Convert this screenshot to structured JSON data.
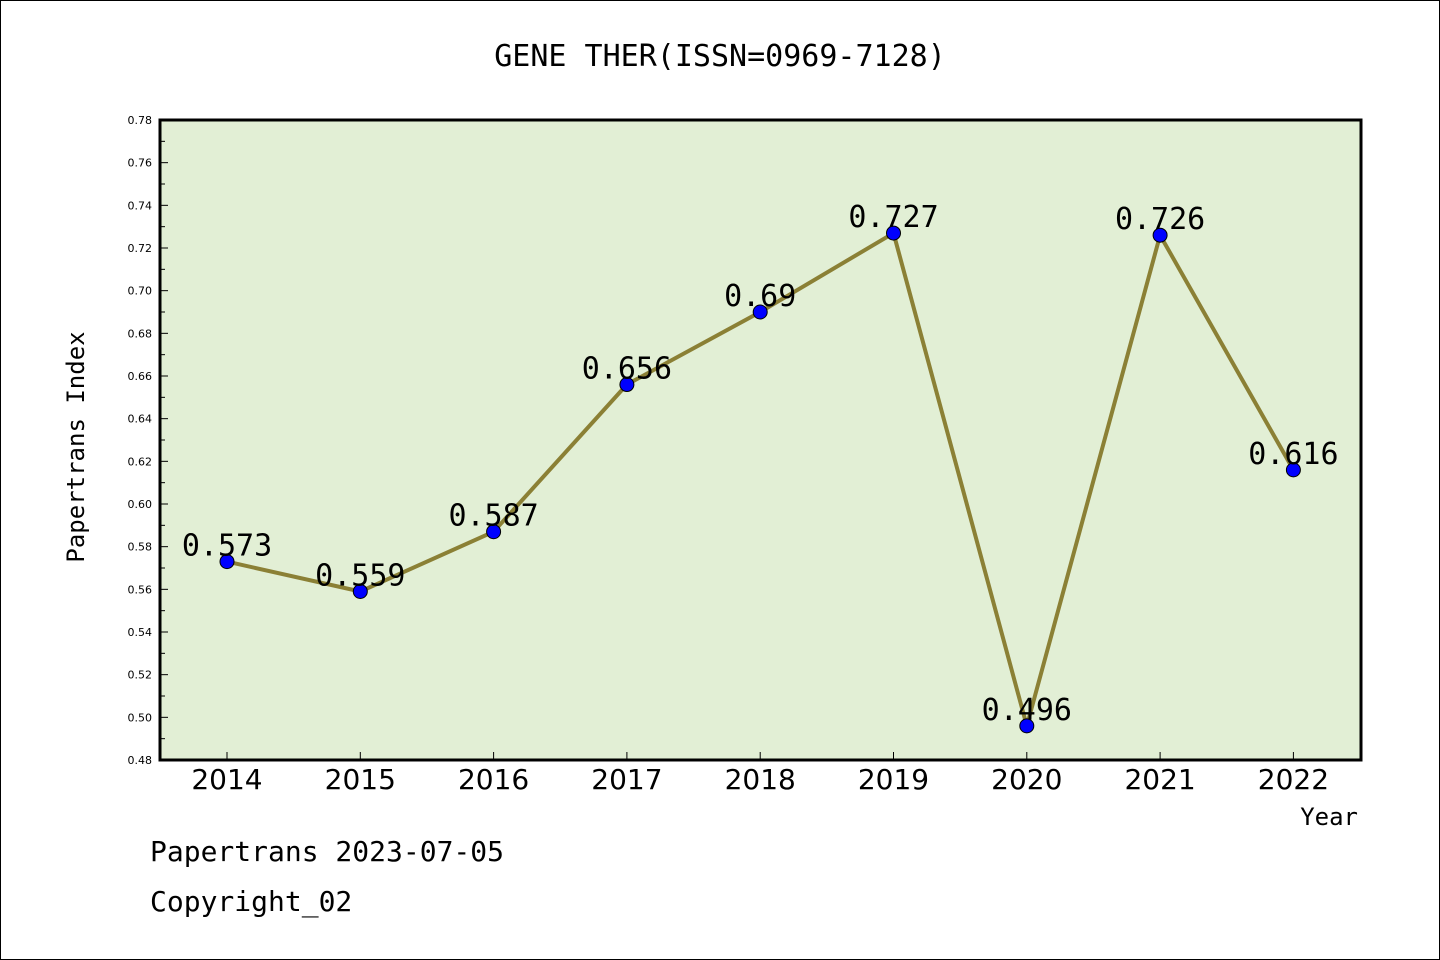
{
  "chart_data": {
    "type": "line",
    "title": "GENE THER(ISSN=0969-7128)",
    "xlabel": "Year",
    "ylabel": "Papertrans Index",
    "categories": [
      "2014",
      "2015",
      "2016",
      "2017",
      "2018",
      "2019",
      "2020",
      "2021",
      "2022"
    ],
    "values": [
      0.573,
      0.559,
      0.587,
      0.656,
      0.69,
      0.727,
      0.496,
      0.726,
      0.616
    ],
    "value_labels": [
      "0.573",
      "0.559",
      "0.587",
      "0.656",
      "0.69",
      "0.727",
      "0.496",
      "0.726",
      "0.616"
    ],
    "ylim": [
      0.48,
      0.78
    ],
    "yticks": [
      "0.48",
      "0.50",
      "0.52",
      "0.54",
      "0.56",
      "0.58",
      "0.60",
      "0.62",
      "0.64",
      "0.66",
      "0.68",
      "0.70",
      "0.72",
      "0.74",
      "0.76",
      "0.78"
    ],
    "grid": false,
    "colors": {
      "plot_bg": "#e2efd5",
      "line": "#8b8035",
      "marker": "#0000ff"
    }
  },
  "footer": {
    "line1": "Papertrans 2023-07-05",
    "line2": "Copyright_02"
  }
}
